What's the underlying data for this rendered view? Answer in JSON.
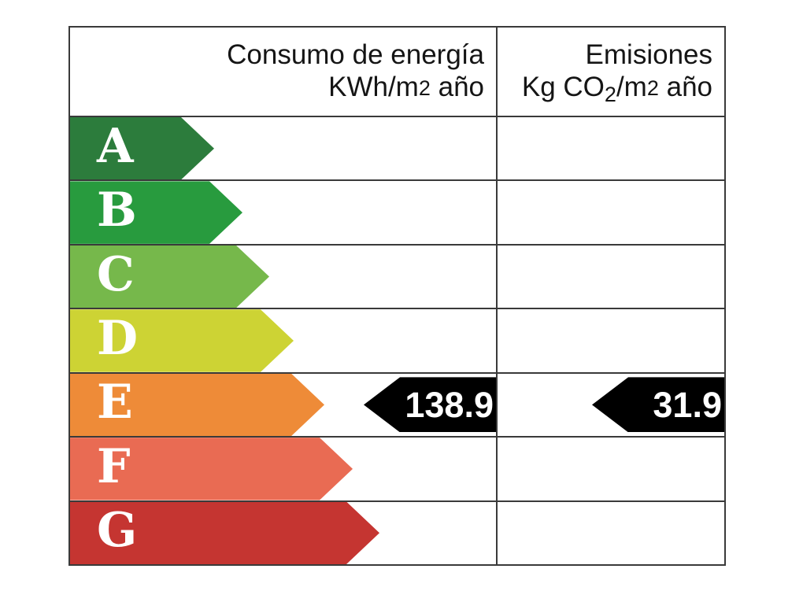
{
  "page": {
    "background": "#ffffff"
  },
  "table": {
    "border_color": "#3a3a3a",
    "header": {
      "consumption": {
        "title": "Consumo de energía",
        "unit_prefix": "KWh/m",
        "unit_exponent": "2",
        "unit_suffix": " año"
      },
      "emissions": {
        "title": "Emisiones",
        "unit_prefix": "Kg CO",
        "unit_subscript": "2",
        "unit_mid": "/m",
        "unit_exponent": "2",
        "unit_suffix": " año"
      }
    },
    "ratings": [
      {
        "label": "A",
        "color": "#2c7c3c",
        "arrow_width": 183
      },
      {
        "label": "B",
        "color": "#289b3e",
        "arrow_width": 219
      },
      {
        "label": "C",
        "color": "#76b84b",
        "arrow_width": 253
      },
      {
        "label": "D",
        "color": "#cdd334",
        "arrow_width": 284
      },
      {
        "label": "E",
        "color": "#ee8b38",
        "arrow_width": 323
      },
      {
        "label": "F",
        "color": "#e96b53",
        "arrow_width": 359
      },
      {
        "label": "G",
        "color": "#c53531",
        "arrow_width": 393
      }
    ],
    "indicators": {
      "rating": "E",
      "consumption_value": "138.9",
      "emissions_value": "31.9",
      "arrow_color": "#000000",
      "value_text_color": "#ffffff"
    }
  },
  "chart_data": {
    "type": "table",
    "columns": [
      "Consumo de energía KWh/m2 año",
      "Emisiones Kg CO2/m2 año"
    ],
    "rating_scale": [
      "A",
      "B",
      "C",
      "D",
      "E",
      "F",
      "G"
    ],
    "rating_colors": [
      "#2c7c3c",
      "#289b3e",
      "#76b84b",
      "#cdd334",
      "#ee8b38",
      "#e96b53",
      "#c53531"
    ],
    "selected_rating": "E",
    "values": {
      "consumption_kwh_m2_ano": 138.9,
      "emissions_kg_co2_m2_ano": 31.9
    },
    "layout": {
      "rows_increase_length_from_A_to_G": true,
      "indicator_arrows": "black, left-pointing, aligned to right edge of each column at row E"
    }
  }
}
